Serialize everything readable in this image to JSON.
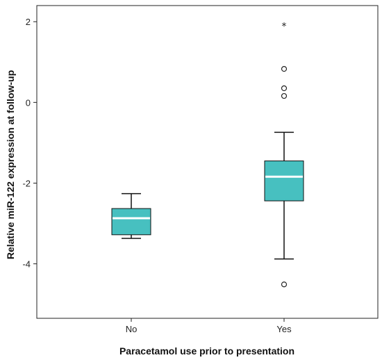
{
  "chart_data": {
    "type": "boxplot",
    "title": "",
    "xlabel": "Paracetamol use prior to presentation",
    "ylabel": "Relative miR-122 expression at follow-up",
    "categories": [
      "No",
      "Yes"
    ],
    "y_ticks": [
      "2",
      "0",
      "-2",
      "-4"
    ],
    "y_tick_values": [
      2,
      0,
      -2,
      -4
    ],
    "ylim": [
      -5.35,
      2.4
    ],
    "grid": false,
    "legend": "none",
    "box_color": "#47c0c0",
    "median_color": "#ffffff",
    "boxes": [
      {
        "category": "No",
        "whisker_low": -3.37,
        "q1": -3.28,
        "median": -2.87,
        "q3": -2.63,
        "whisker_high": -2.26,
        "outliers": [],
        "extremes": []
      },
      {
        "category": "Yes",
        "whisker_low": -3.88,
        "q1": -2.44,
        "median": -1.84,
        "q3": -1.45,
        "whisker_high": -0.74,
        "outliers": [
          0.83,
          0.35,
          0.16,
          -4.51
        ],
        "extremes": [
          1.91
        ]
      }
    ]
  }
}
